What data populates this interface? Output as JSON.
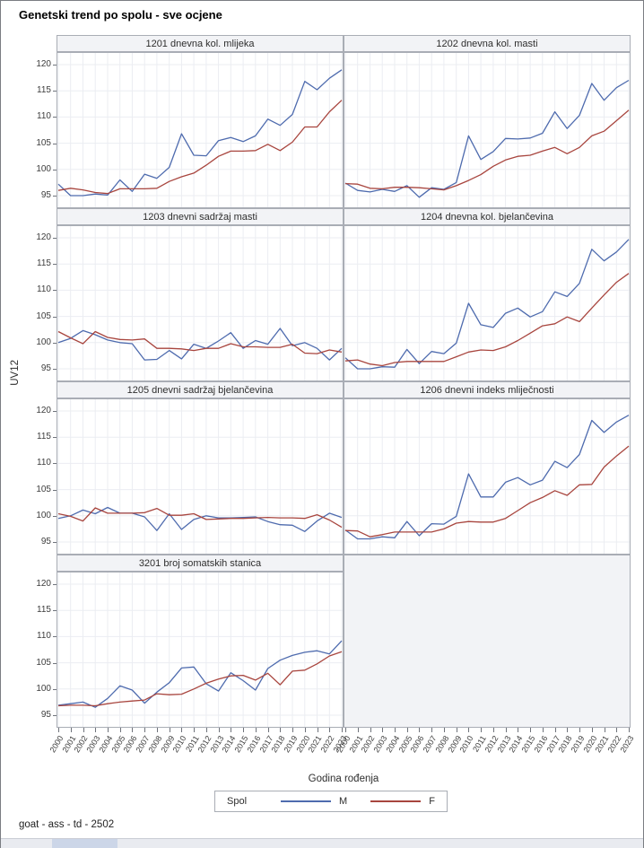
{
  "title": "Genetski trend po spolu - sve ocjene",
  "footer": "goat - ass - td - 2502",
  "axis": {
    "ylabel": "UV12",
    "xlabel": "Godina rođenja",
    "yticks": [
      120,
      115,
      110,
      105,
      100,
      95
    ],
    "ylim": [
      95,
      120
    ],
    "years": [
      "2000",
      "2001",
      "2002",
      "2003",
      "2004",
      "2005",
      "2006",
      "2007",
      "2008",
      "2009",
      "2010",
      "2011",
      "2012",
      "2013",
      "2014",
      "2015",
      "2016",
      "2017",
      "2018",
      "2019",
      "2020",
      "2021",
      "2022",
      "2023"
    ]
  },
  "legend": {
    "title": "Spol",
    "series": [
      {
        "label": "M",
        "color": "#4e6bae"
      },
      {
        "label": "F",
        "color": "#a8453e"
      }
    ]
  },
  "colors": {
    "male_line": "#4e6bae",
    "female_line": "#a8453e",
    "gridline": "#ebedf2",
    "panel_border": "#a9adb5",
    "header_bg": "#f2f3f6"
  },
  "chart_data": [
    {
      "type": "line",
      "title": "1201 dnevna kol. mlijeka",
      "ylim": [
        95,
        120
      ],
      "categories": [
        "2000",
        "2001",
        "2002",
        "2003",
        "2004",
        "2005",
        "2006",
        "2007",
        "2008",
        "2009",
        "2010",
        "2011",
        "2012",
        "2013",
        "2014",
        "2015",
        "2016",
        "2017",
        "2018",
        "2019",
        "2020",
        "2021",
        "2022",
        "2023"
      ],
      "series": [
        {
          "name": "M",
          "values": [
            97.2,
            95.0,
            95.0,
            95.3,
            95.1,
            98.0,
            95.8,
            99.1,
            98.3,
            100.4,
            106.8,
            102.7,
            102.6,
            105.5,
            106.1,
            105.3,
            106.4,
            109.6,
            108.4,
            110.5,
            116.8,
            115.2,
            117.4,
            119.0
          ]
        },
        {
          "name": "F",
          "values": [
            96.0,
            96.4,
            96.1,
            95.6,
            95.4,
            96.3,
            96.3,
            96.3,
            96.4,
            97.7,
            98.6,
            99.3,
            100.8,
            102.5,
            103.5,
            103.5,
            103.6,
            104.8,
            103.6,
            105.2,
            108.1,
            108.1,
            111.0,
            113.2
          ]
        }
      ]
    },
    {
      "type": "line",
      "title": "1202 dnevna kol. masti",
      "ylim": [
        95,
        120
      ],
      "categories": [
        "2000",
        "2001",
        "2002",
        "2003",
        "2004",
        "2005",
        "2006",
        "2007",
        "2008",
        "2009",
        "2010",
        "2011",
        "2012",
        "2013",
        "2014",
        "2015",
        "2016",
        "2017",
        "2018",
        "2019",
        "2020",
        "2021",
        "2022",
        "2023"
      ],
      "series": [
        {
          "name": "M",
          "values": [
            97.4,
            96.0,
            95.7,
            96.2,
            95.8,
            96.9,
            94.7,
            96.5,
            96.2,
            97.5,
            106.4,
            101.9,
            103.4,
            105.9,
            105.8,
            106.0,
            106.9,
            111.0,
            107.8,
            110.3,
            116.4,
            113.2,
            115.6,
            117.0
          ]
        },
        {
          "name": "F",
          "values": [
            97.3,
            97.2,
            96.4,
            96.3,
            96.6,
            96.6,
            96.5,
            96.3,
            96.1,
            96.9,
            97.9,
            99.0,
            100.6,
            101.8,
            102.5,
            102.7,
            103.5,
            104.2,
            103.0,
            104.2,
            106.4,
            107.3,
            109.3,
            111.3
          ]
        }
      ]
    },
    {
      "type": "line",
      "title": "1203 dnevni sadržaj masti",
      "ylim": [
        95,
        120
      ],
      "categories": [
        "2000",
        "2001",
        "2002",
        "2003",
        "2004",
        "2005",
        "2006",
        "2007",
        "2008",
        "2009",
        "2010",
        "2011",
        "2012",
        "2013",
        "2014",
        "2015",
        "2016",
        "2017",
        "2018",
        "2019",
        "2020",
        "2021",
        "2022",
        "2023"
      ],
      "series": [
        {
          "name": "M",
          "values": [
            100.0,
            100.8,
            102.3,
            101.5,
            100.5,
            100.0,
            99.8,
            96.7,
            96.8,
            98.5,
            96.9,
            99.7,
            98.9,
            100.3,
            101.9,
            98.9,
            100.4,
            99.7,
            102.7,
            99.4,
            100.0,
            98.9,
            96.7,
            98.9
          ]
        },
        {
          "name": "F",
          "values": [
            102.1,
            100.9,
            99.8,
            102.1,
            101.0,
            100.6,
            100.5,
            100.7,
            98.9,
            98.9,
            98.8,
            98.5,
            98.9,
            98.9,
            99.8,
            99.2,
            99.2,
            99.1,
            99.1,
            99.7,
            98.0,
            97.9,
            98.6,
            98.2
          ]
        }
      ]
    },
    {
      "type": "line",
      "title": "1204 dnevna kol. bjelančevina",
      "ylim": [
        95,
        120
      ],
      "categories": [
        "2000",
        "2001",
        "2002",
        "2003",
        "2004",
        "2005",
        "2006",
        "2007",
        "2008",
        "2009",
        "2010",
        "2011",
        "2012",
        "2013",
        "2014",
        "2015",
        "2016",
        "2017",
        "2018",
        "2019",
        "2020",
        "2021",
        "2022",
        "2023"
      ],
      "series": [
        {
          "name": "M",
          "values": [
            97.1,
            95.0,
            95.0,
            95.4,
            95.3,
            98.7,
            96.0,
            98.3,
            97.9,
            99.9,
            107.5,
            103.4,
            102.9,
            105.6,
            106.6,
            104.9,
            105.9,
            109.7,
            108.8,
            111.3,
            117.8,
            115.6,
            117.3,
            119.7
          ]
        },
        {
          "name": "F",
          "values": [
            96.5,
            96.7,
            95.9,
            95.6,
            96.2,
            96.4,
            96.4,
            96.4,
            96.4,
            97.3,
            98.2,
            98.6,
            98.5,
            99.2,
            100.4,
            101.8,
            103.2,
            103.6,
            104.9,
            104.0,
            106.6,
            109.1,
            111.5,
            113.2
          ]
        }
      ]
    },
    {
      "type": "line",
      "title": "1205 dnevni sadržaj bjelančevina",
      "ylim": [
        95,
        120
      ],
      "categories": [
        "2000",
        "2001",
        "2002",
        "2003",
        "2004",
        "2005",
        "2006",
        "2007",
        "2008",
        "2009",
        "2010",
        "2011",
        "2012",
        "2013",
        "2014",
        "2015",
        "2016",
        "2017",
        "2018",
        "2019",
        "2020",
        "2021",
        "2022",
        "2023"
      ],
      "series": [
        {
          "name": "M",
          "values": [
            99.5,
            100.0,
            101.1,
            100.4,
            101.6,
            100.5,
            100.5,
            99.8,
            97.2,
            100.4,
            97.4,
            99.3,
            100.0,
            99.6,
            99.6,
            99.7,
            99.8,
            98.9,
            98.3,
            98.2,
            97.0,
            99.0,
            100.5,
            99.7
          ]
        },
        {
          "name": "F",
          "values": [
            100.4,
            99.9,
            99.0,
            101.5,
            100.5,
            100.5,
            100.5,
            100.6,
            101.4,
            100.1,
            100.1,
            100.4,
            99.3,
            99.4,
            99.5,
            99.5,
            99.6,
            99.7,
            99.6,
            99.6,
            99.5,
            100.2,
            99.2,
            97.8
          ]
        }
      ]
    },
    {
      "type": "line",
      "title": "1206 dnevni indeks mliječnosti",
      "ylim": [
        95,
        120
      ],
      "categories": [
        "2000",
        "2001",
        "2002",
        "2003",
        "2004",
        "2005",
        "2006",
        "2007",
        "2008",
        "2009",
        "2010",
        "2011",
        "2012",
        "2013",
        "2014",
        "2015",
        "2016",
        "2017",
        "2018",
        "2019",
        "2020",
        "2021",
        "2022",
        "2023"
      ],
      "series": [
        {
          "name": "M",
          "values": [
            97.3,
            95.6,
            95.6,
            96.0,
            95.8,
            98.9,
            96.2,
            98.5,
            98.4,
            99.9,
            108.0,
            103.6,
            103.6,
            106.4,
            107.3,
            105.9,
            106.8,
            110.4,
            109.2,
            111.7,
            118.2,
            115.9,
            117.9,
            119.2
          ]
        },
        {
          "name": "F",
          "values": [
            97.2,
            97.1,
            96.0,
            96.4,
            96.9,
            96.9,
            96.9,
            96.9,
            97.5,
            98.6,
            98.9,
            98.8,
            98.8,
            99.5,
            101.0,
            102.5,
            103.5,
            104.8,
            103.9,
            105.9,
            106.0,
            109.3,
            111.4,
            113.3
          ]
        }
      ]
    },
    {
      "type": "line",
      "title": "3201 broj somatskih stanica",
      "ylim": [
        95,
        120
      ],
      "categories": [
        "2000",
        "2001",
        "2002",
        "2003",
        "2004",
        "2005",
        "2006",
        "2007",
        "2008",
        "2009",
        "2010",
        "2011",
        "2012",
        "2013",
        "2014",
        "2015",
        "2016",
        "2017",
        "2018",
        "2019",
        "2020",
        "2021",
        "2022",
        "2023"
      ],
      "series": [
        {
          "name": "M",
          "values": [
            96.9,
            97.2,
            97.5,
            96.5,
            98.2,
            100.6,
            99.8,
            97.3,
            99.4,
            101.2,
            104.0,
            104.2,
            101.0,
            99.6,
            103.1,
            101.6,
            99.8,
            103.9,
            105.5,
            106.4,
            107.0,
            107.3,
            106.7,
            109.2
          ]
        },
        {
          "name": "F",
          "values": [
            96.8,
            96.9,
            96.9,
            96.8,
            97.2,
            97.5,
            97.7,
            97.9,
            99.1,
            98.9,
            99.0,
            100.0,
            101.1,
            101.9,
            102.5,
            102.6,
            101.7,
            103.0,
            100.8,
            103.4,
            103.6,
            104.8,
            106.3,
            107.1
          ]
        }
      ]
    }
  ]
}
